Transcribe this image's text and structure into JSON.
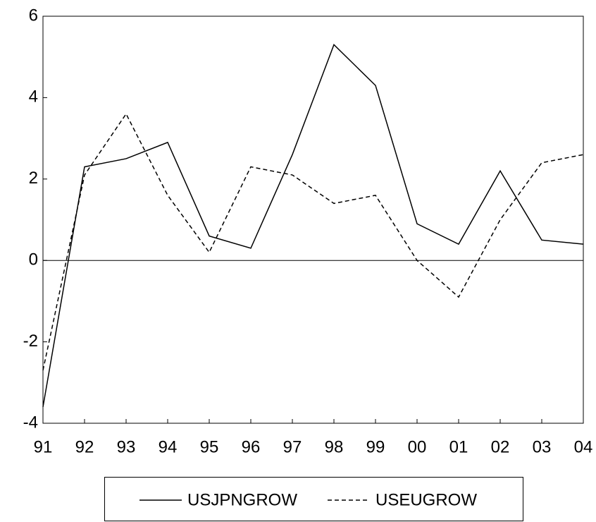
{
  "chart_data": {
    "type": "line",
    "categories": [
      "91",
      "92",
      "93",
      "94",
      "95",
      "96",
      "97",
      "98",
      "99",
      "00",
      "01",
      "02",
      "03",
      "04"
    ],
    "series": [
      {
        "name": "USJPNGROW",
        "color": "#000000",
        "dash": "solid",
        "values": [
          -3.6,
          2.3,
          2.5,
          2.9,
          0.6,
          0.3,
          2.6,
          5.3,
          4.3,
          0.9,
          0.4,
          2.2,
          0.5,
          0.4
        ]
      },
      {
        "name": "USEUGROW",
        "color": "#000000",
        "dash": "dashed",
        "values": [
          -2.7,
          2.1,
          3.6,
          1.6,
          0.2,
          2.3,
          2.1,
          1.4,
          1.6,
          0.0,
          -0.9,
          1.0,
          2.4,
          2.6
        ]
      }
    ],
    "ylim": [
      -4,
      6
    ],
    "yticks": [
      -4,
      -2,
      0,
      2,
      4,
      6
    ],
    "zero_line": true,
    "grid": false,
    "legend": "bottom"
  }
}
